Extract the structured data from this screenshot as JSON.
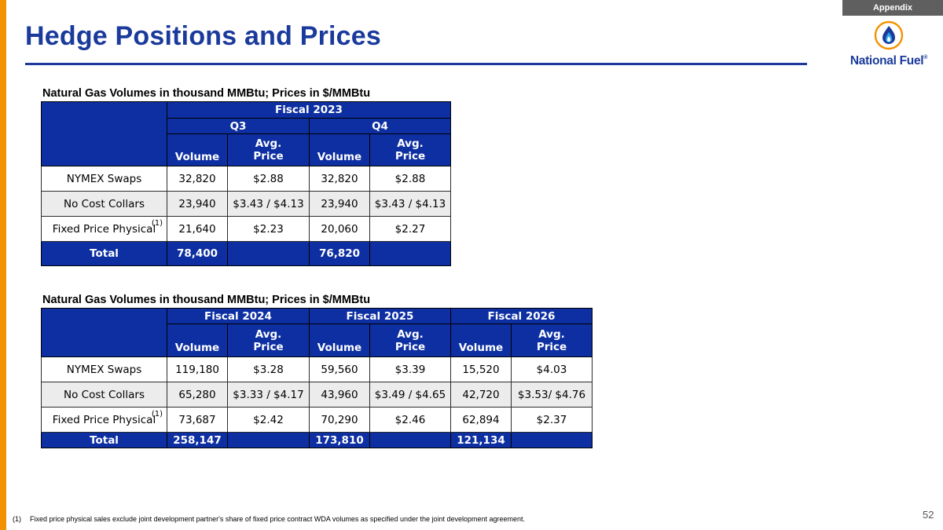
{
  "header": {
    "appendix_label": "Appendix",
    "title": "Hedge Positions and Prices"
  },
  "logo": {
    "name": "National Fuel",
    "registered_mark": "®",
    "colors": {
      "brand_blue": "#1a3a9c",
      "accent_orange": "#f39200",
      "flame_light": "#2fa4e7"
    }
  },
  "table1": {
    "caption": "Natural Gas Volumes in thousand MMBtu; Prices in $/MMBtu",
    "fiscal_label": "Fiscal 2023",
    "quarters": [
      "Q3",
      "Q4"
    ],
    "col_headers": {
      "volume": "Volume",
      "avg_line1": "Avg.",
      "avg_line2": "Price"
    },
    "rows": [
      {
        "label": "NYMEX Swaps",
        "footnote": "",
        "values": [
          "32,820",
          "$2.88",
          "32,820",
          "$2.88"
        ]
      },
      {
        "label": "No Cost Collars",
        "footnote": "",
        "values": [
          "23,940",
          "$3.43 / $4.13",
          "23,940",
          "$3.43 / $4.13"
        ]
      },
      {
        "label": "Fixed Price Physical",
        "footnote": "(1)",
        "values": [
          "21,640",
          "$2.23",
          "20,060",
          "$2.27"
        ]
      }
    ],
    "total": {
      "label": "Total",
      "values": [
        "78,400",
        "",
        "76,820",
        ""
      ]
    }
  },
  "table2": {
    "caption": "Natural Gas Volumes in thousand MMBtu; Prices in $/MMBtu",
    "fiscal_labels": [
      "Fiscal 2024",
      "Fiscal 2025",
      "Fiscal 2026"
    ],
    "col_headers": {
      "volume": "Volume",
      "avg_line1": "Avg.",
      "avg_line2": "Price"
    },
    "rows": [
      {
        "label": "NYMEX Swaps",
        "footnote": "",
        "values": [
          "119,180",
          "$3.28",
          "59,560",
          "$3.39",
          "15,520",
          "$4.03"
        ]
      },
      {
        "label": "No Cost Collars",
        "footnote": "",
        "values": [
          "65,280",
          "$3.33 / $4.17",
          "43,960",
          "$3.49 / $4.65",
          "42,720",
          "$3.53/ $4.76"
        ]
      },
      {
        "label": "Fixed Price Physical",
        "footnote": "(1)",
        "values": [
          "73,687",
          "$2.42",
          "70,290",
          "$2.46",
          "62,894",
          "$2.37"
        ]
      }
    ],
    "total": {
      "label": "Total",
      "values": [
        "258,147",
        "",
        "173,810",
        "",
        "121,134",
        ""
      ]
    }
  },
  "footnote": {
    "number": "(1)",
    "text": "Fixed price physical sales exclude joint development partner's share of fixed price contract WDA volumes as specified under the joint development agreement."
  },
  "page_number": "52"
}
